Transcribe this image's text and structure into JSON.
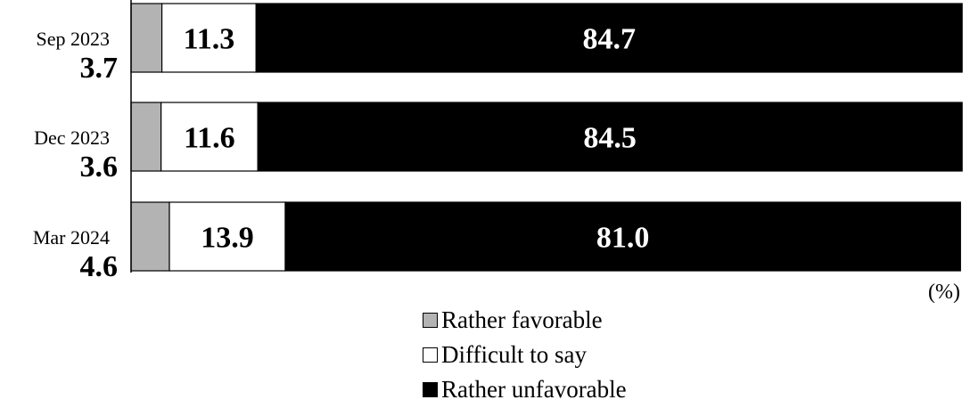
{
  "chart_data": {
    "type": "bar",
    "orientation": "horizontal",
    "stacked": true,
    "categories": [
      "Sep 2023",
      "Dec 2023",
      "Mar 2024"
    ],
    "series": [
      {
        "name": "Rather favorable",
        "values": [
          3.7,
          3.6,
          4.6
        ],
        "color": "#b3b3b3"
      },
      {
        "name": "Difficult to say",
        "values": [
          11.3,
          11.6,
          13.9
        ],
        "color": "#ffffff"
      },
      {
        "name": "Rather unfavorable",
        "values": [
          84.7,
          84.5,
          81.0
        ],
        "color": "#000000"
      }
    ],
    "unit": "(%)",
    "xlim": [
      0,
      100
    ],
    "legend_position": "bottom"
  }
}
